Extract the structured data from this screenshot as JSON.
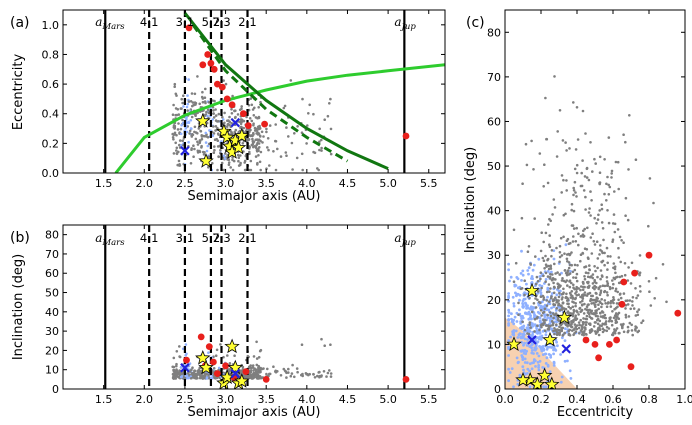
{
  "chart_data": [
    {
      "type": "scatter",
      "panel": "(a)",
      "xlabel": "Semimajor axis (AU)",
      "ylabel": "Eccentricity",
      "xlim": [
        1.0,
        5.7
      ],
      "ylim": [
        0.0,
        1.1
      ],
      "xticks": [
        "1.5",
        "2.0",
        "2.5",
        "3.0",
        "3.5",
        "4.0",
        "4.5",
        "5.0",
        "5.5"
      ],
      "yticks": [
        "0.0",
        "0.2",
        "0.4",
        "0.6",
        "0.8",
        "1.0"
      ],
      "vlines": [
        {
          "x": 1.52,
          "label": "a_Mars",
          "style": "solid"
        },
        {
          "x": 2.06,
          "label": "4:1",
          "style": "dashed"
        },
        {
          "x": 2.5,
          "label": "3:1",
          "style": "dashed"
        },
        {
          "x": 2.82,
          "label": "5:2",
          "style": "dashed"
        },
        {
          "x": 2.95,
          "label": "7:3",
          "style": "dashed"
        },
        {
          "x": 3.27,
          "label": "2:1",
          "style": "dashed"
        },
        {
          "x": 5.2,
          "label": "a_Jup",
          "style": "solid"
        }
      ],
      "series": [
        {
          "name": "Mars-crossing curve",
          "kind": "curve",
          "color": "#2ecc2e",
          "points": [
            [
              1.65,
              0.0
            ],
            [
              2.0,
              0.24
            ],
            [
              2.5,
              0.39
            ],
            [
              3.0,
              0.49
            ],
            [
              3.5,
              0.56
            ],
            [
              4.0,
              0.62
            ],
            [
              4.5,
              0.66
            ],
            [
              5.0,
              0.69
            ],
            [
              5.7,
              0.73
            ]
          ]
        },
        {
          "name": "Jupiter-crossing curve",
          "kind": "curve",
          "color": "#117711",
          "points": [
            [
              2.5,
              1.08
            ],
            [
              3.0,
              0.73
            ],
            [
              3.5,
              0.49
            ],
            [
              4.0,
              0.3
            ],
            [
              4.5,
              0.15
            ],
            [
              5.0,
              0.03
            ]
          ]
        },
        {
          "name": "Jupiter-crossing (dashed)",
          "kind": "curve",
          "color": "#117711",
          "dashed": true,
          "points": [
            [
              2.6,
              1.0
            ],
            [
              3.0,
              0.69
            ],
            [
              3.5,
              0.43
            ],
            [
              4.0,
              0.24
            ],
            [
              4.5,
              0.08
            ]
          ]
        },
        {
          "name": "red dots",
          "kind": "points",
          "color": "#e8201c",
          "points": [
            [
              2.55,
              0.98
            ],
            [
              2.72,
              0.73
            ],
            [
              2.78,
              0.8
            ],
            [
              2.82,
              0.74
            ],
            [
              2.86,
              0.7
            ],
            [
              2.9,
              0.6
            ],
            [
              2.96,
              0.58
            ],
            [
              3.02,
              0.5
            ],
            [
              3.08,
              0.46
            ],
            [
              3.22,
              0.4
            ],
            [
              3.28,
              0.32
            ],
            [
              3.48,
              0.33
            ],
            [
              5.22,
              0.25
            ]
          ]
        },
        {
          "name": "yellow stars",
          "kind": "stars",
          "color": "#ffff33",
          "points": [
            [
              2.72,
              0.35
            ],
            [
              2.76,
              0.08
            ],
            [
              2.98,
              0.28
            ],
            [
              3.02,
              0.24
            ],
            [
              3.05,
              0.18
            ],
            [
              3.08,
              0.14
            ],
            [
              3.12,
              0.22
            ],
            [
              3.16,
              0.17
            ],
            [
              3.2,
              0.25
            ]
          ]
        },
        {
          "name": "blue crosses",
          "kind": "cross",
          "color": "#2222dd",
          "points": [
            [
              2.5,
              0.15
            ],
            [
              3.12,
              0.34
            ]
          ]
        }
      ]
    },
    {
      "type": "scatter",
      "panel": "(b)",
      "xlabel": "Semimajor axis (AU)",
      "ylabel": "Inclination (deg)",
      "xlim": [
        1.0,
        5.7
      ],
      "ylim": [
        0,
        85
      ],
      "xticks": [
        "1.5",
        "2.0",
        "2.5",
        "3.0",
        "3.5",
        "4.0",
        "4.5",
        "5.0",
        "5.5"
      ],
      "yticks": [
        "0",
        "10",
        "20",
        "30",
        "40",
        "50",
        "60",
        "70",
        "80"
      ],
      "series": [
        {
          "name": "red dots",
          "kind": "points",
          "color": "#e8201c",
          "points": [
            [
              2.52,
              15
            ],
            [
              2.7,
              27
            ],
            [
              2.75,
              12
            ],
            [
              2.8,
              22
            ],
            [
              2.85,
              14
            ],
            [
              2.9,
              8
            ],
            [
              3.0,
              12
            ],
            [
              3.1,
              6
            ],
            [
              3.25,
              9
            ],
            [
              3.5,
              5
            ],
            [
              5.22,
              5
            ]
          ]
        },
        {
          "name": "yellow stars",
          "kind": "stars",
          "color": "#ffff33",
          "points": [
            [
              2.72,
              16
            ],
            [
              2.76,
              11
            ],
            [
              2.98,
              3
            ],
            [
              3.02,
              6
            ],
            [
              3.08,
              22
            ],
            [
              3.12,
              11
            ],
            [
              3.16,
              3
            ],
            [
              3.2,
              4
            ]
          ]
        },
        {
          "name": "blue crosses",
          "kind": "cross",
          "color": "#2222dd",
          "points": [
            [
              2.5,
              11
            ],
            [
              3.12,
              8
            ]
          ]
        }
      ]
    },
    {
      "type": "scatter",
      "panel": "(c)",
      "xlabel": "Eccentricity",
      "ylabel": "Inclination (deg)",
      "xlim": [
        0.0,
        1.0
      ],
      "ylim": [
        0,
        85
      ],
      "xticks": [
        "0.0",
        "0.2",
        "0.4",
        "0.6",
        "0.8",
        "1.0"
      ],
      "yticks": [
        "0",
        "10",
        "20",
        "30",
        "40",
        "50",
        "60",
        "70",
        "80"
      ],
      "series": [
        {
          "name": "red dots",
          "kind": "points",
          "color": "#e8201c",
          "points": [
            [
              0.45,
              11
            ],
            [
              0.5,
              10
            ],
            [
              0.52,
              7
            ],
            [
              0.58,
              10
            ],
            [
              0.62,
              11
            ],
            [
              0.65,
              19
            ],
            [
              0.66,
              24
            ],
            [
              0.7,
              5
            ],
            [
              0.72,
              26
            ],
            [
              0.8,
              30
            ],
            [
              0.96,
              17
            ]
          ]
        },
        {
          "name": "yellow stars",
          "kind": "stars",
          "color": "#ffff33",
          "points": [
            [
              0.05,
              10
            ],
            [
              0.15,
              22
            ],
            [
              0.25,
              11
            ],
            [
              0.33,
              16
            ],
            [
              0.14,
              2
            ],
            [
              0.18,
              1
            ],
            [
              0.22,
              3
            ],
            [
              0.26,
              1
            ],
            [
              0.1,
              2
            ]
          ]
        },
        {
          "name": "blue crosses",
          "kind": "cross",
          "color": "#2222dd",
          "points": [
            [
              0.15,
              11
            ],
            [
              0.34,
              9
            ]
          ]
        }
      ]
    }
  ]
}
